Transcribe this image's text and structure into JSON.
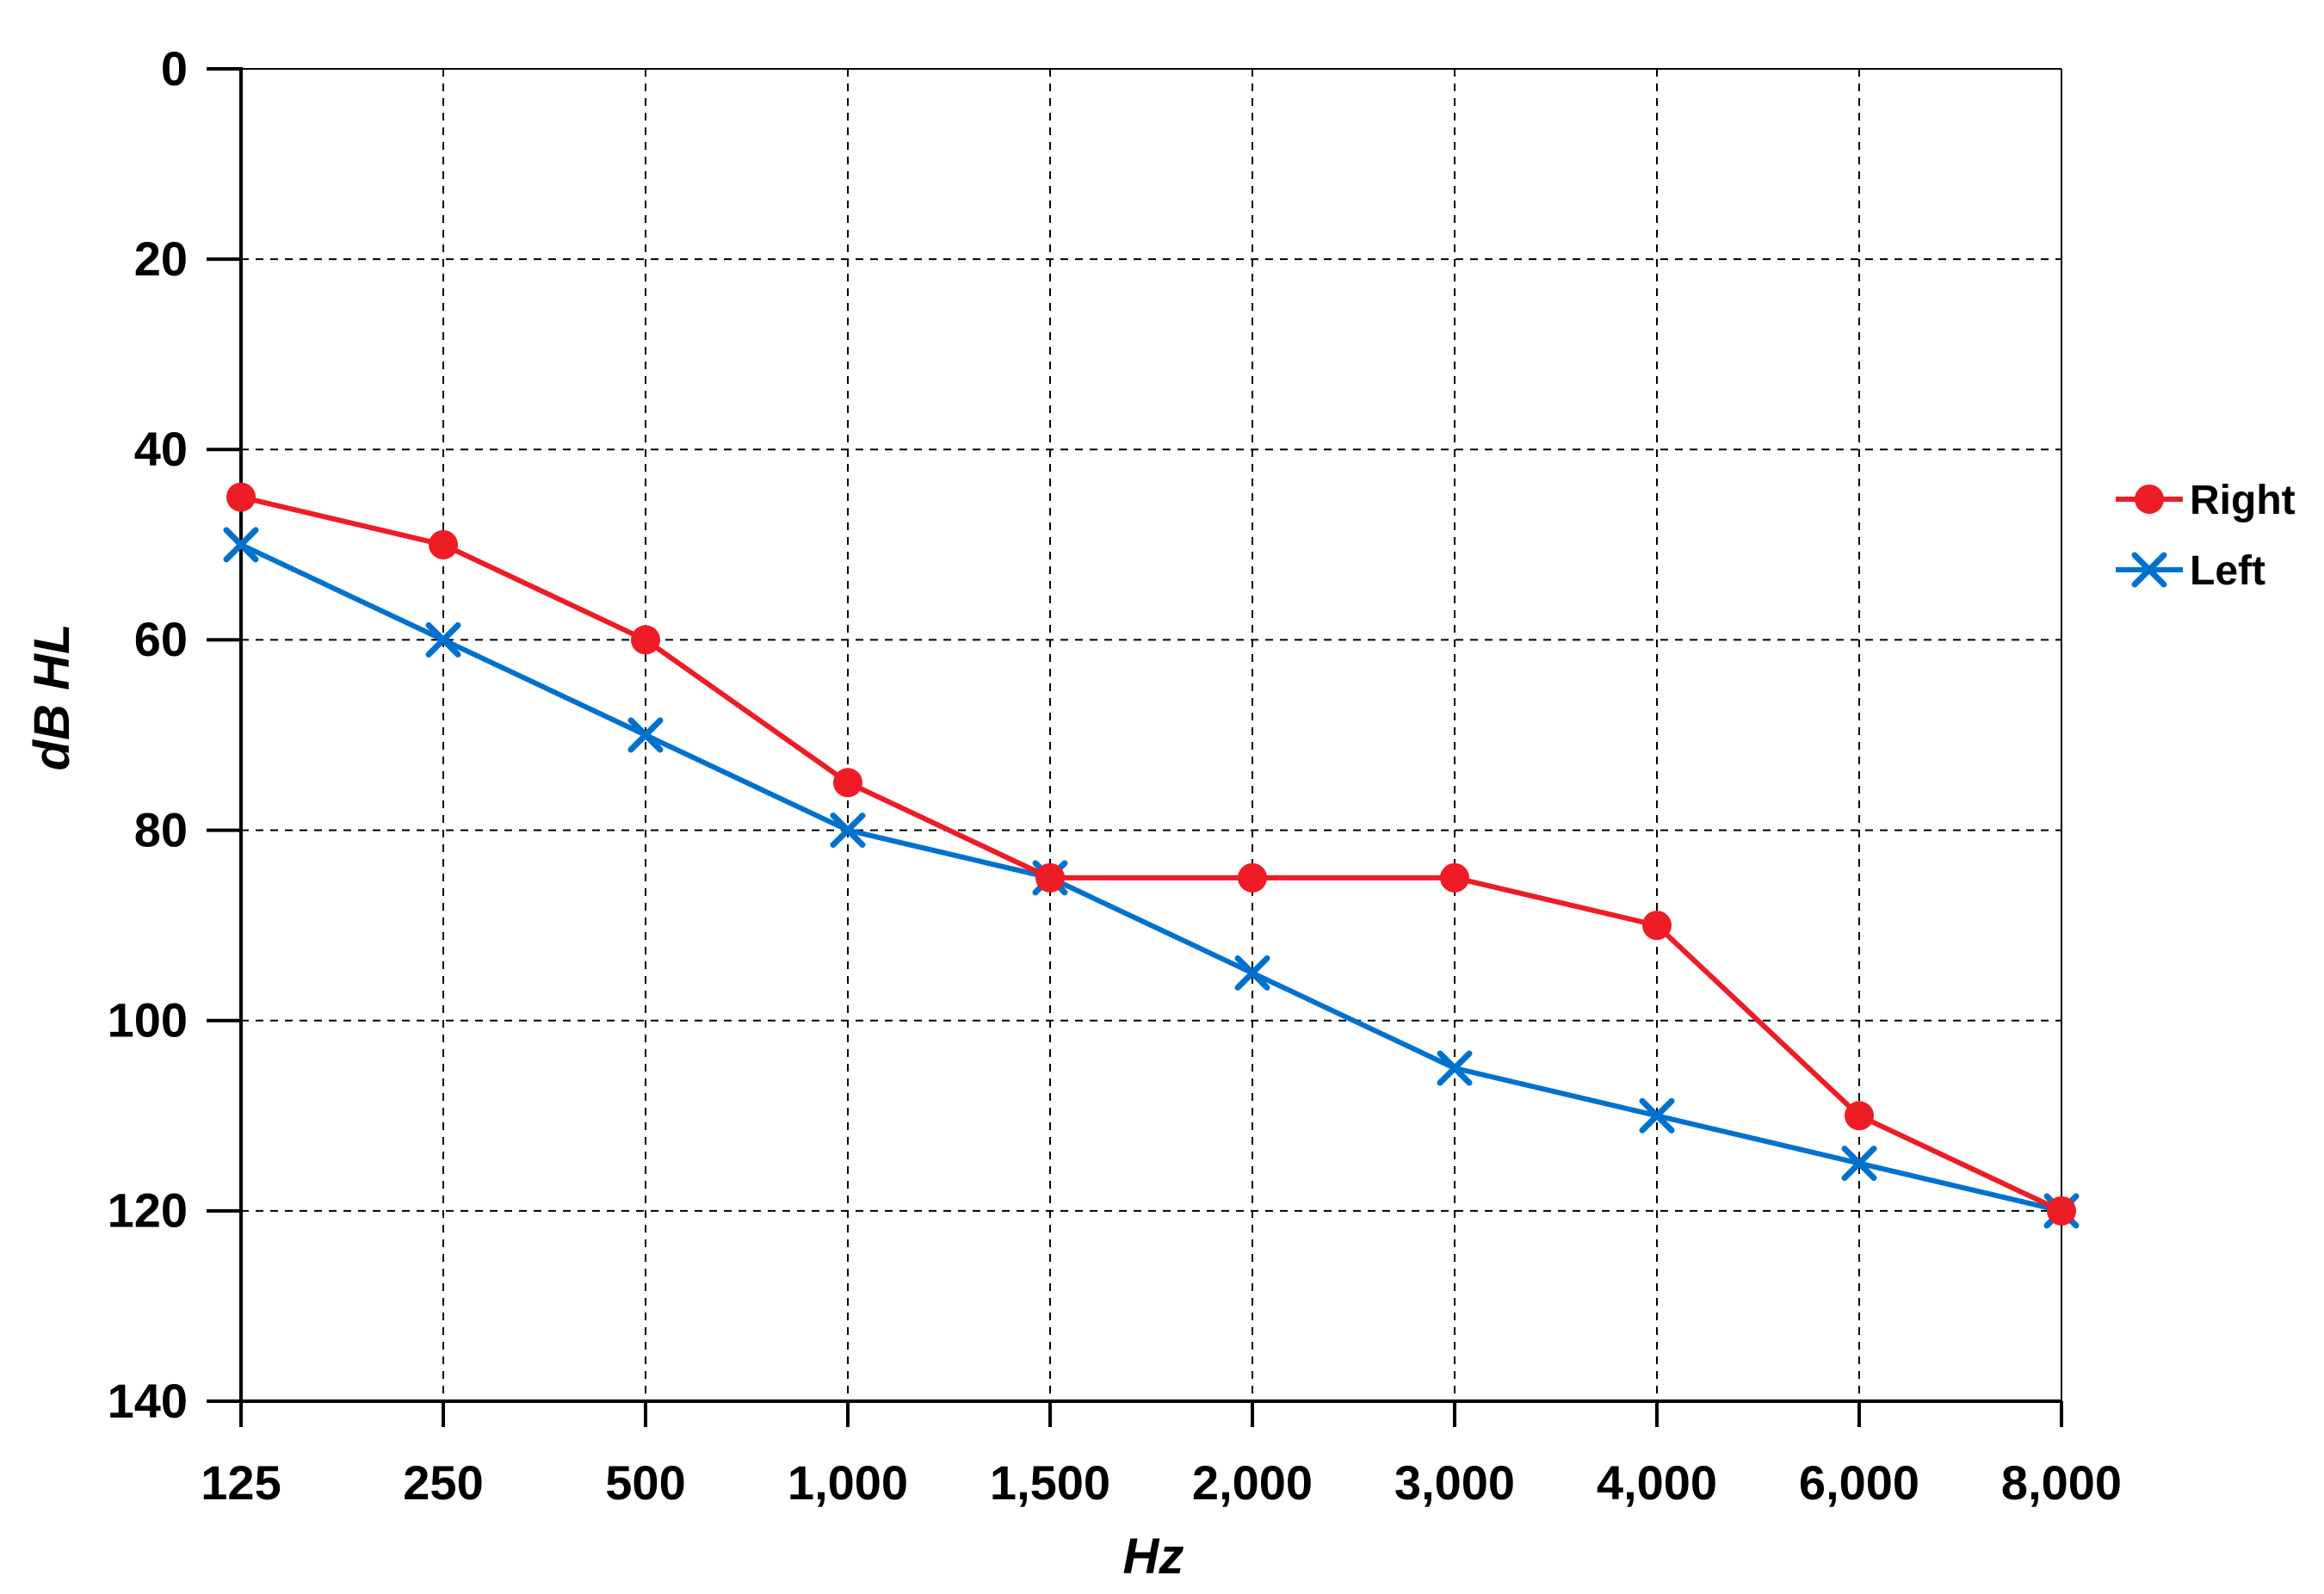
{
  "chart_data": {
    "type": "line",
    "title": "",
    "xlabel": "Hz",
    "ylabel": "dB HL",
    "categories": [
      "125",
      "250",
      "500",
      "1,000",
      "1,500",
      "2,000",
      "3,000",
      "4,000",
      "6,000",
      "8,000"
    ],
    "ylim": [
      0,
      140
    ],
    "y_inverted": true,
    "yticks": [
      "0",
      "20",
      "40",
      "60",
      "80",
      "100",
      "120",
      "140"
    ],
    "grid": true,
    "legend_position": "right",
    "series": [
      {
        "name": "Right",
        "marker": "circle",
        "color": "#ee1c25",
        "values": [
          45,
          50,
          60,
          75,
          85,
          85,
          85,
          90,
          110,
          120
        ]
      },
      {
        "name": "Left",
        "marker": "x",
        "color": "#0072ce",
        "values": [
          50,
          60,
          70,
          80,
          85,
          95,
          105,
          110,
          115,
          120
        ]
      }
    ]
  }
}
